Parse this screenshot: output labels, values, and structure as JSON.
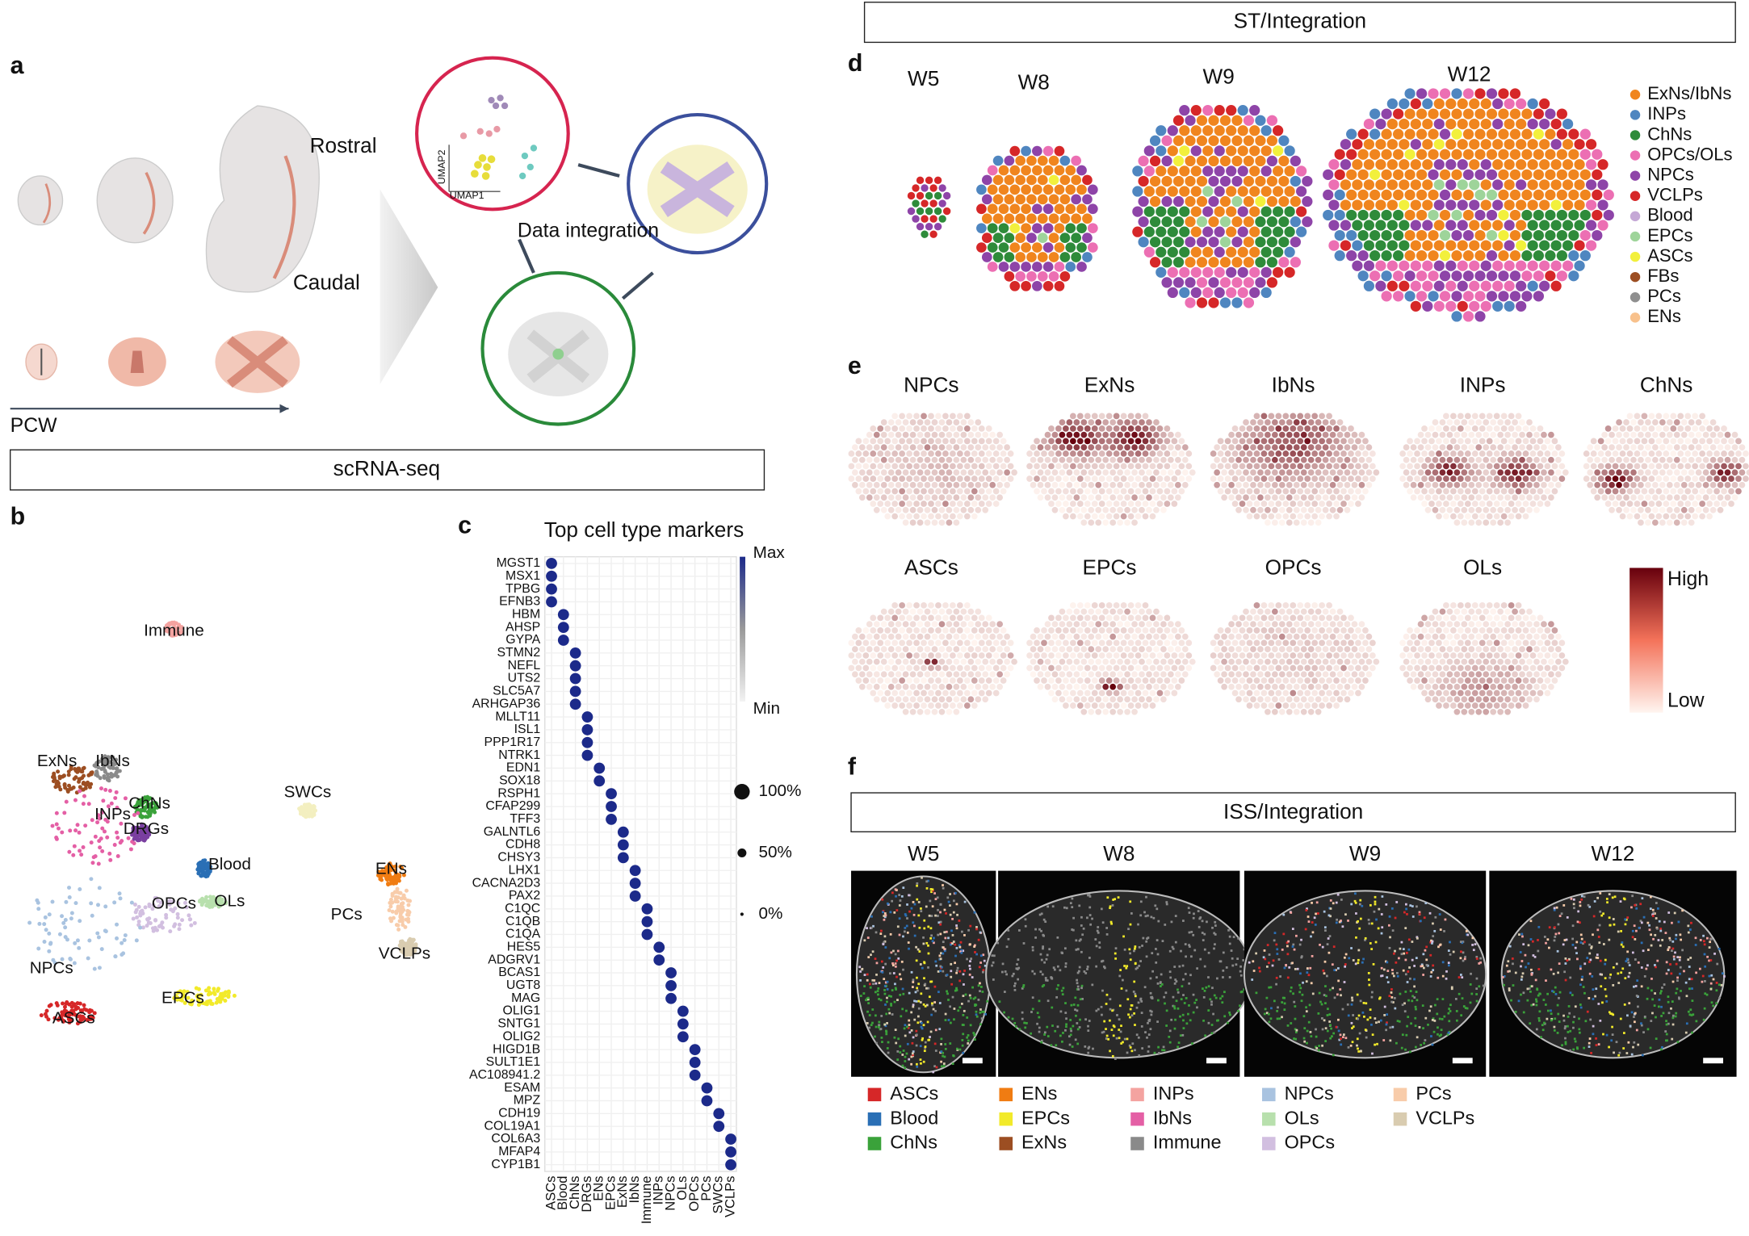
{
  "panel_labels": [
    "a",
    "b",
    "c",
    "d",
    "e",
    "f"
  ],
  "panel_a": {
    "rostral": "Rostral",
    "caudal": "Caudal",
    "axis": "PCW",
    "umap_x": "UMAP1",
    "umap_y": "UMAP2",
    "center": "Data integration",
    "banner": "scRNA-seq"
  },
  "panel_b": {
    "clusters": [
      {
        "name": "Immune",
        "color": "#f4a3a0"
      },
      {
        "name": "ExNs",
        "color": "#9c4e22"
      },
      {
        "name": "IbNs",
        "color": "#8a8a8a"
      },
      {
        "name": "ChNs",
        "color": "#3aa23a"
      },
      {
        "name": "INPs",
        "color": "#e45fa5"
      },
      {
        "name": "DRGs",
        "color": "#7a3fa0"
      },
      {
        "name": "SWCs",
        "color": "#f3efc0"
      },
      {
        "name": "Blood",
        "color": "#2a6fb5"
      },
      {
        "name": "ENs",
        "color": "#f07c12"
      },
      {
        "name": "OLs",
        "color": "#b8e0ad"
      },
      {
        "name": "OPCs",
        "color": "#d2bfe0"
      },
      {
        "name": "PCs",
        "color": "#f8ccaa"
      },
      {
        "name": "VCLPs",
        "color": "#d9ccb0"
      },
      {
        "name": "NPCs",
        "color": "#a9c3e0"
      },
      {
        "name": "EPCs",
        "color": "#f2ea2a"
      },
      {
        "name": "ASCs",
        "color": "#d62728"
      }
    ]
  },
  "panel_c": {
    "title": "Top cell type markers",
    "dot_color": "#1c2a8a",
    "groups": [
      {
        "type": "ASCs",
        "genes": [
          "MGST1",
          "MSX1",
          "TPBG",
          "EFNB3"
        ]
      },
      {
        "type": "Blood",
        "genes": [
          "HBM",
          "AHSP",
          "GYPA"
        ]
      },
      {
        "type": "ChNs",
        "genes": [
          "STMN2",
          "NEFL",
          "UTS2",
          "SLC5A7",
          "ARHGAP36"
        ]
      },
      {
        "type": "DRGs",
        "genes": [
          "MLLT11",
          "ISL1",
          "PPP1R17",
          "NTRK1"
        ]
      },
      {
        "type": "ENs",
        "genes": [
          "EDN1",
          "SOX18"
        ]
      },
      {
        "type": "EPCs",
        "genes": [
          "RSPH1",
          "CFAP299",
          "TFF3"
        ]
      },
      {
        "type": "ExNs",
        "genes": [
          "GALNTL6",
          "CDH8",
          "CHSY3"
        ]
      },
      {
        "type": "IbNs",
        "genes": [
          "LHX1",
          "CACNA2D3",
          "PAX2"
        ]
      },
      {
        "type": "Immune",
        "genes": [
          "C1QC",
          "C1QB",
          "C1QA"
        ]
      },
      {
        "type": "INPs",
        "genes": [
          "HES5",
          "ADGRV1"
        ]
      },
      {
        "type": "NPCs",
        "genes": [
          "BCAS1",
          "UGT8",
          "MAG"
        ]
      },
      {
        "type": "OLs",
        "genes": [
          "OLIG1",
          "SNTG1",
          "OLIG2"
        ]
      },
      {
        "type": "OPCs",
        "genes": [
          "HIGD1B",
          "SULT1E1",
          "AC108941.2"
        ]
      },
      {
        "type": "PCs",
        "genes": [
          "ESAM",
          "MPZ"
        ]
      },
      {
        "type": "SWCs",
        "genes": [
          "CDH19",
          "COL19A1"
        ]
      },
      {
        "type": "VCLPs",
        "genes": [
          "COL6A3",
          "MFAP4",
          "CYP1B1"
        ]
      }
    ],
    "colorbar": {
      "max": "Max",
      "min": "Min"
    },
    "size_legend": [
      "100%",
      "50%",
      "0%"
    ]
  },
  "panel_d": {
    "banner": "ST/Integration",
    "timepoints": [
      "W5",
      "W8",
      "W9",
      "W12"
    ],
    "legend": [
      {
        "name": "ExNs/IbNs",
        "color": "#f0851e"
      },
      {
        "name": "INPs",
        "color": "#4f86c0"
      },
      {
        "name": "ChNs",
        "color": "#2e8b3a"
      },
      {
        "name": "OPCs/OLs",
        "color": "#ec6fb3"
      },
      {
        "name": "NPCs",
        "color": "#8e44a8"
      },
      {
        "name": "VCLPs",
        "color": "#d62728"
      },
      {
        "name": "Blood",
        "color": "#c5a8d6"
      },
      {
        "name": "EPCs",
        "color": "#9ed49a"
      },
      {
        "name": "ASCs",
        "color": "#f2f03c"
      },
      {
        "name": "FBs",
        "color": "#9c4e22"
      },
      {
        "name": "PCs",
        "color": "#8f8f8f"
      },
      {
        "name": "ENs",
        "color": "#f8c18c"
      }
    ]
  },
  "panel_e": {
    "maps": [
      "NPCs",
      "ExNs",
      "IbNs",
      "INPs",
      "ChNs",
      "ASCs",
      "EPCs",
      "OPCs",
      "OLs"
    ],
    "high": "High",
    "low": "Low",
    "color": "#67000d"
  },
  "panel_f": {
    "banner": "ISS/Integration",
    "timepoints": [
      "W5",
      "W8",
      "W9",
      "W12"
    ],
    "legend": [
      {
        "name": "ASCs",
        "color": "#d62728"
      },
      {
        "name": "Blood",
        "color": "#2a6fb5"
      },
      {
        "name": "ChNs",
        "color": "#3aa23a"
      },
      {
        "name": "ENs",
        "color": "#f07c12"
      },
      {
        "name": "EPCs",
        "color": "#f2ea2a"
      },
      {
        "name": "ExNs",
        "color": "#9c4e22"
      },
      {
        "name": "INPs",
        "color": "#f4a3a0"
      },
      {
        "name": "IbNs",
        "color": "#e45fa5"
      },
      {
        "name": "Immune",
        "color": "#8a8a8a"
      },
      {
        "name": "NPCs",
        "color": "#a9c3e0"
      },
      {
        "name": "OLs",
        "color": "#b8e0ad"
      },
      {
        "name": "OPCs",
        "color": "#d2bfe0"
      },
      {
        "name": "PCs",
        "color": "#f8ccaa"
      },
      {
        "name": "VCLPs",
        "color": "#d9ccb0"
      }
    ]
  }
}
